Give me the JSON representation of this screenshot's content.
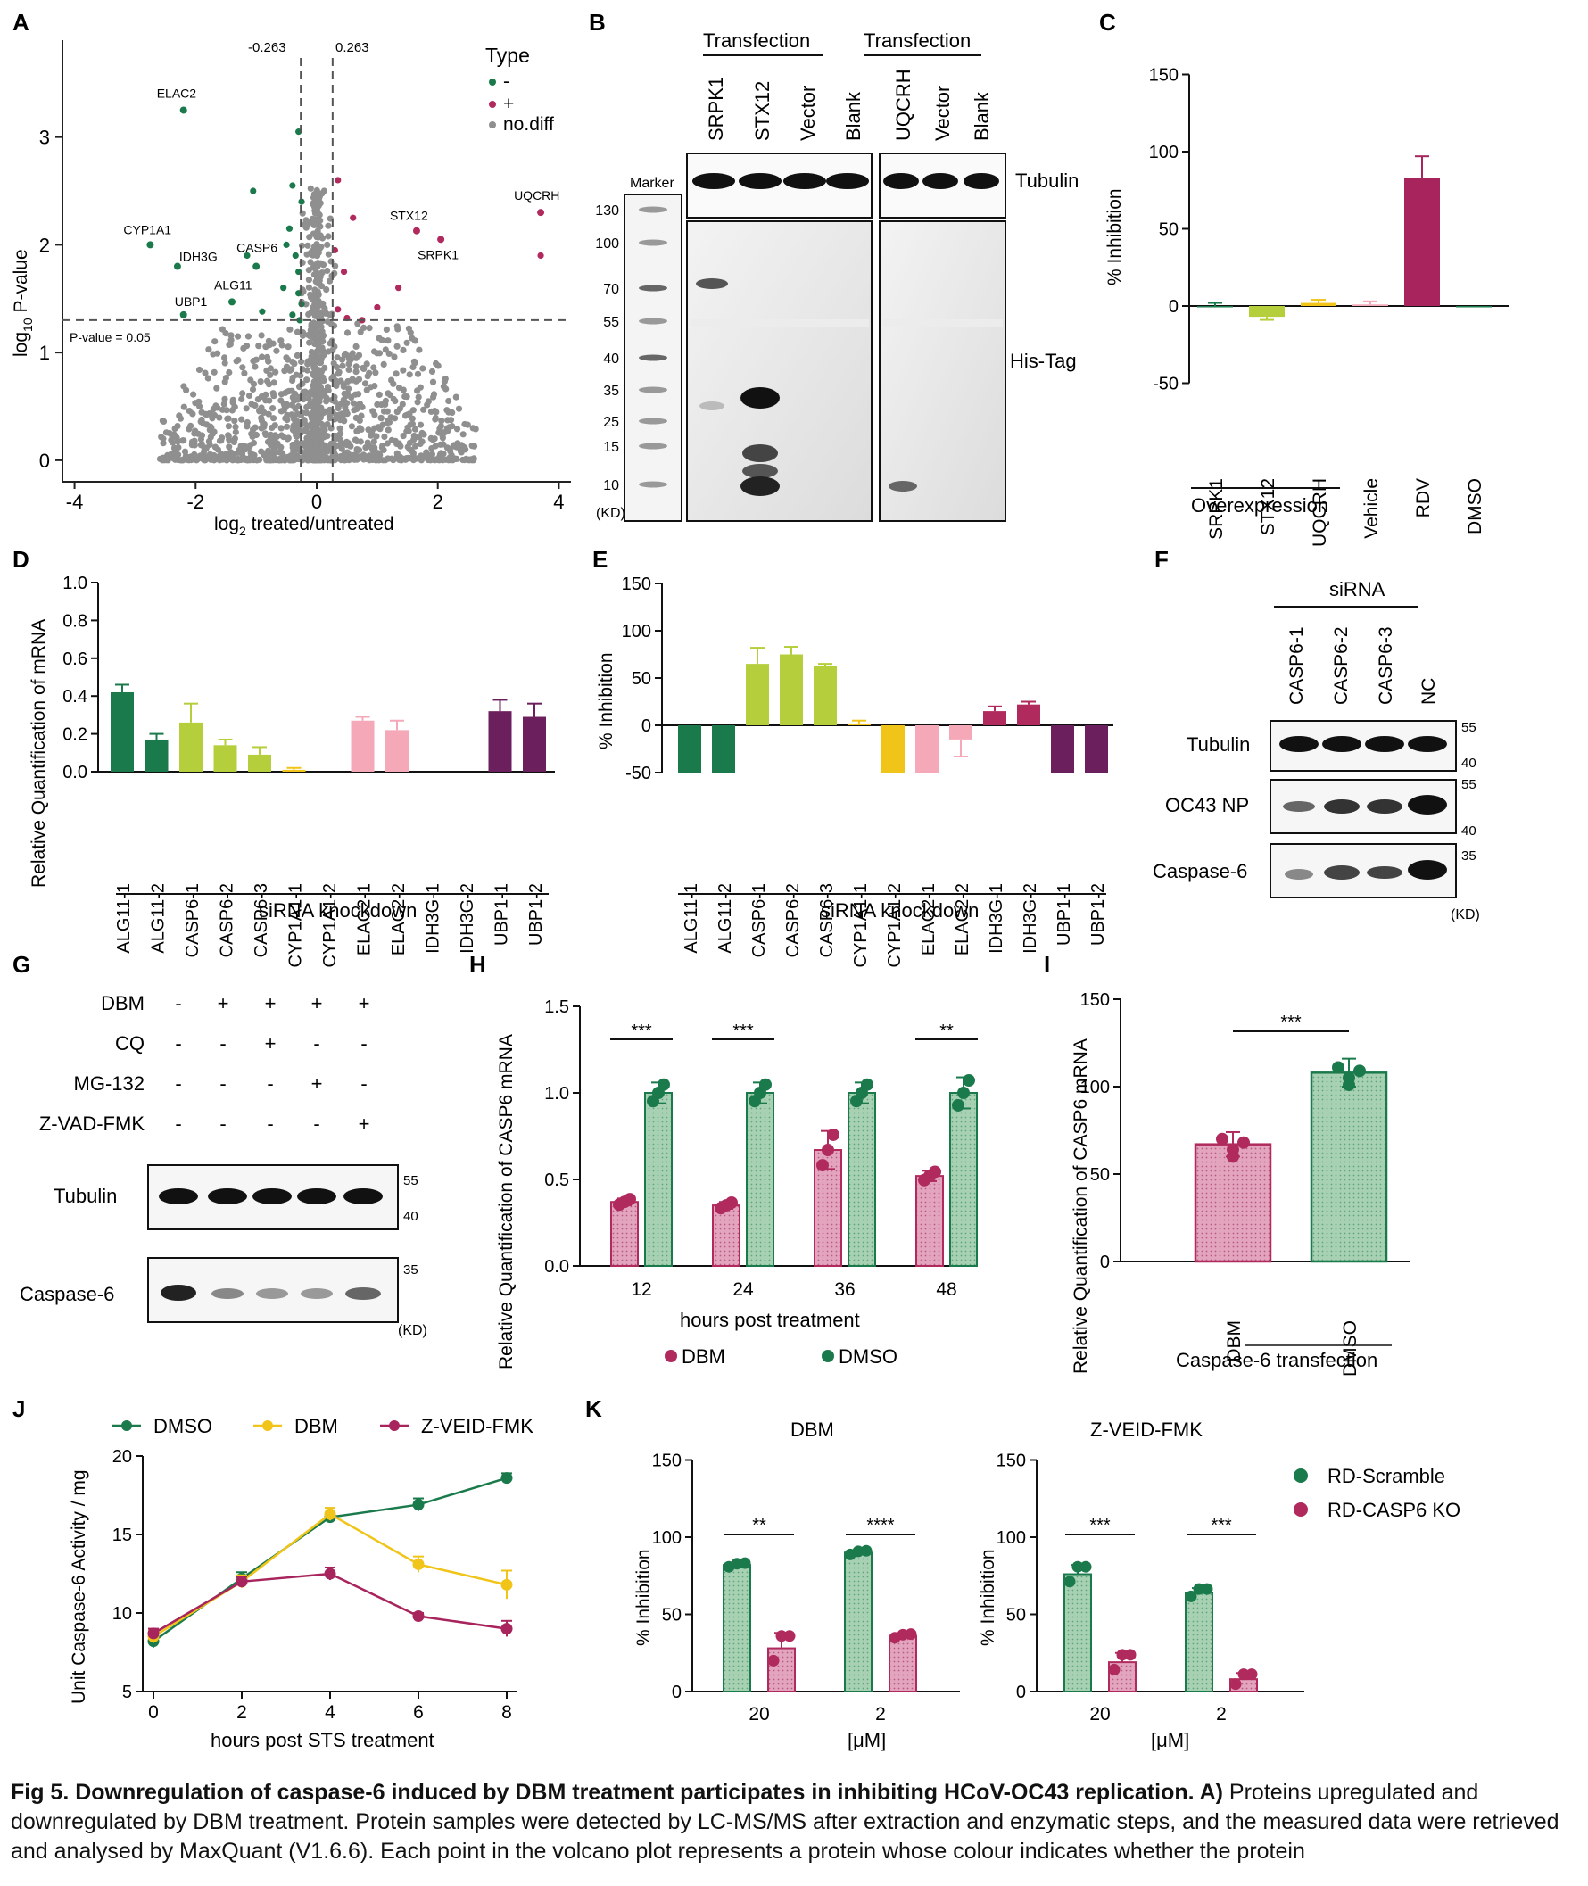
{
  "colors": {
    "green": "#1b7a4c",
    "pink_dark": "#b02a5e",
    "lime": "#b5cf3c",
    "yellow": "#f0c419",
    "pink_light": "#f5a9b8",
    "purple": "#6b1f5c",
    "magenta": "#a8245c",
    "gray": "#8f8f8f",
    "green_fill": "#a8d1b4",
    "pink_fill": "#e3a4bd"
  },
  "panels": {
    "A": {
      "letter": "A",
      "legend_title": "Type",
      "legend": [
        "-",
        "+",
        "no.diff"
      ],
      "xlabel": "log2 treated/untreated",
      "ylabel": "log10 P-value",
      "threshold_left": "-0.263",
      "threshold_right": "0.263",
      "pvalue_label": "P-value = 0.05",
      "x_ticks": [
        "-4",
        "-2",
        "0",
        "2",
        "4"
      ],
      "y_ticks": [
        "0",
        "1",
        "2",
        "3"
      ]
    },
    "B": {
      "letter": "B",
      "header_left": "Transfection",
      "header_right": "Transfection",
      "lanes_left": [
        "SRPK1",
        "STX12",
        "Vector",
        "Blank"
      ],
      "lanes_right": [
        "UQCRH",
        "Vector",
        "Blank"
      ],
      "marker_label": "Marker",
      "band_top": "Tubulin",
      "band_bottom": "His-Tag",
      "mw": [
        "130",
        "100",
        "70",
        "55",
        "40",
        "35",
        "25",
        "15",
        "10"
      ],
      "unit": "(KD)"
    },
    "C": {
      "letter": "C",
      "ylabel": "% Inhibition",
      "y_ticks": [
        "150",
        "100",
        "50",
        "0",
        "-50"
      ],
      "group_label": "Overexpression"
    },
    "D": {
      "letter": "D",
      "ylabel": "Relative Quantification of mRNA",
      "xgroup": "siRNA knockdown",
      "y_ticks": [
        "1.0",
        "0.8",
        "0.6",
        "0.4",
        "0.2",
        "0.0"
      ]
    },
    "E": {
      "letter": "E",
      "ylabel": "% Inhibition",
      "xgroup": "siRNA knockdown",
      "y_ticks": [
        "150",
        "100",
        "50",
        "0",
        "-50"
      ]
    },
    "F": {
      "letter": "F",
      "header": "siRNA",
      "lanes": [
        "CASP6-1",
        "CASP6-2",
        "CASP6-3",
        "NC"
      ],
      "rows": [
        "Tubulin",
        "OC43 NP",
        "Caspase-6"
      ],
      "mw": [
        "55",
        "40",
        "55",
        "40",
        "35"
      ],
      "unit": "(KD)"
    },
    "G": {
      "letter": "G",
      "treatments": [
        {
          "name": "DBM",
          "signs": [
            "-",
            "+",
            "+",
            "+",
            "+"
          ]
        },
        {
          "name": "CQ",
          "signs": [
            "-",
            "-",
            "+",
            "-",
            "-"
          ]
        },
        {
          "name": "MG-132",
          "signs": [
            "-",
            "-",
            "-",
            "+",
            "-"
          ]
        },
        {
          "name": "Z-VAD-FMK",
          "signs": [
            "-",
            "-",
            "-",
            "-",
            "+"
          ]
        }
      ],
      "rows": [
        "Tubulin",
        "Caspase-6"
      ],
      "mw": [
        "55",
        "40",
        "35"
      ],
      "unit": "(KD)"
    },
    "H": {
      "letter": "H",
      "ylabel": "Relative Quantification of CASP6 mRNA",
      "xlabel": "hours post treatment",
      "legend": [
        "DBM",
        "DMSO"
      ],
      "y_ticks": [
        "1.5",
        "1.0",
        "0.5",
        "0.0"
      ],
      "sig": [
        "***",
        "***",
        "**"
      ]
    },
    "I": {
      "letter": "I",
      "ylabel": "Relative Quantification of CASP6 mRNA",
      "xlabel": "Caspase-6 transfection",
      "y_ticks": [
        "150",
        "100",
        "50",
        "0"
      ],
      "sig": "***"
    },
    "J": {
      "letter": "J",
      "ylabel": "Unit Caspase-6 Activity / mg",
      "xlabel": "hours post STS treatment",
      "legend": [
        "DMSO",
        "DBM",
        "Z-VEID-FMK"
      ],
      "y_ticks": [
        "20",
        "15",
        "10",
        "5"
      ]
    },
    "K": {
      "letter": "K",
      "title_left": "DBM",
      "title_right": "Z-VEID-FMK",
      "ylabel": "% Inhibition",
      "xlabel": "[μM]",
      "legend": [
        "RD-Scramble",
        "RD-CASP6 KO"
      ],
      "y_ticks": [
        "150",
        "100",
        "50",
        "0"
      ],
      "sig_left": [
        "**",
        "****"
      ],
      "sig_right": [
        "***",
        "***"
      ]
    }
  },
  "chart_data": [
    {
      "panel": "C",
      "type": "bar",
      "categories": [
        "SRPK1",
        "STX12",
        "UQCRH",
        "Vehicle",
        "RDV",
        "DMSO"
      ],
      "values": [
        0,
        -7,
        2,
        1,
        83,
        0
      ],
      "errors": [
        2,
        2,
        2,
        2,
        14,
        0
      ],
      "ylabel": "% Inhibition",
      "ylim": [
        -50,
        150
      ]
    },
    {
      "panel": "D",
      "type": "bar",
      "categories": [
        "ALG11-1",
        "ALG11-2",
        "CASP6-1",
        "CASP6-2",
        "CASP6-3",
        "CYP1A1-1",
        "CYP1A1-2",
        "ELAC2-1",
        "ELAC2-2",
        "IDH3G-1",
        "IDH3G-2",
        "UBP1-1",
        "UBP1-2"
      ],
      "values": [
        0.42,
        0.17,
        0.26,
        0.14,
        0.09,
        0.01,
        0,
        0.27,
        0.22,
        0,
        0,
        0.32,
        0.29
      ],
      "errors": [
        0.04,
        0.03,
        0.1,
        0.03,
        0.04,
        0.01,
        0,
        0.02,
        0.05,
        0,
        0,
        0.06,
        0.07
      ],
      "ylabel": "Relative Quantification of mRNA",
      "ylim": [
        0,
        1
      ]
    },
    {
      "panel": "E",
      "type": "bar",
      "categories": [
        "ALG11-1",
        "ALG11-2",
        "CASP6-1",
        "CASP6-2",
        "CASP6-3",
        "CYP1A1-1",
        "CYP1A1-2",
        "ELAC2-1",
        "ELAC2-2",
        "IDH3G-1",
        "IDH3G-2",
        "UBP1-1",
        "UBP1-2"
      ],
      "values": [
        -50,
        -50,
        65,
        75,
        63,
        2,
        -50,
        -50,
        -15,
        15,
        22,
        -50,
        -50
      ],
      "errors": [
        0,
        0,
        17,
        8,
        2,
        3,
        0,
        0,
        18,
        5,
        3,
        0,
        0
      ],
      "ylabel": "% Inhibition",
      "ylim": [
        -50,
        150
      ]
    },
    {
      "panel": "H",
      "type": "bar",
      "categories": [
        "12",
        "24",
        "36",
        "48"
      ],
      "series": [
        {
          "name": "DBM",
          "values": [
            0.37,
            0.35,
            0.67,
            0.52
          ],
          "errors": [
            0.02,
            0.02,
            0.11,
            0.03
          ]
        },
        {
          "name": "DMSO",
          "values": [
            1.0,
            1.0,
            1.0,
            1.0
          ],
          "errors": [
            0.06,
            0.06,
            0.06,
            0.09
          ]
        }
      ],
      "ylabel": "Relative Quantification of CASP6 mRNA",
      "xlabel": "hours post treatment",
      "ylim": [
        0,
        1.5
      ]
    },
    {
      "panel": "I",
      "type": "bar",
      "categories": [
        "DBM",
        "DMSO"
      ],
      "values": [
        67,
        108
      ],
      "errors": [
        7,
        8
      ],
      "ylabel": "Relative Quantification of CASP6 mRNA",
      "ylim": [
        0,
        150
      ]
    },
    {
      "panel": "J",
      "type": "line",
      "x": [
        0,
        2,
        4,
        6,
        8
      ],
      "series": [
        {
          "name": "DMSO",
          "values": [
            8.2,
            12.2,
            16.1,
            16.9,
            18.6
          ],
          "errors": [
            0.4,
            0.4,
            0.3,
            0.4,
            0.3
          ]
        },
        {
          "name": "DBM",
          "values": [
            8.5,
            12.0,
            16.3,
            13.1,
            11.8
          ],
          "errors": [
            0.4,
            0.4,
            0.4,
            0.5,
            0.9
          ]
        },
        {
          "name": "Z-VEID-FMK",
          "values": [
            8.7,
            12.0,
            12.5,
            9.8,
            9.0
          ],
          "errors": [
            0.3,
            0.3,
            0.4,
            0.2,
            0.5
          ]
        }
      ],
      "ylabel": "Unit Caspase-6 Activity / mg",
      "xlabel": "hours post STS treatment",
      "ylim": [
        5,
        20
      ],
      "xlim": [
        0,
        8
      ]
    },
    {
      "panel": "K-DBM",
      "type": "bar",
      "title": "DBM",
      "categories": [
        "20",
        "2"
      ],
      "series": [
        {
          "name": "RD-Scramble",
          "values": [
            82,
            90
          ],
          "errors": [
            1,
            1
          ]
        },
        {
          "name": "RD-CASP6 KO",
          "values": [
            28,
            36
          ],
          "errors": [
            10,
            1
          ]
        }
      ],
      "ylabel": "% Inhibition",
      "xlabel": "[μM]",
      "ylim": [
        0,
        150
      ]
    },
    {
      "panel": "K-ZVEID",
      "type": "bar",
      "title": "Z-VEID-FMK",
      "categories": [
        "20",
        "2"
      ],
      "series": [
        {
          "name": "RD-Scramble",
          "values": [
            76,
            64
          ],
          "errors": [
            6,
            3
          ]
        },
        {
          "name": "RD-CASP6 KO",
          "values": [
            19,
            8
          ],
          "errors": [
            6,
            4
          ]
        }
      ],
      "ylabel": "% Inhibition",
      "xlabel": "[μM]",
      "ylim": [
        0,
        150
      ]
    },
    {
      "panel": "A",
      "type": "scatter",
      "labeled_points": [
        {
          "label": "ELAC2",
          "x": -2.2,
          "y": 3.25,
          "type": "-"
        },
        {
          "label": "CYP1A1",
          "x": -2.75,
          "y": 2.0,
          "type": "-"
        },
        {
          "label": "IDH3G",
          "x": -2.3,
          "y": 1.8,
          "type": "-"
        },
        {
          "label": "CASP6",
          "x": -1.0,
          "y": 1.8,
          "type": "-"
        },
        {
          "label": "ALG11",
          "x": -1.4,
          "y": 1.47,
          "type": "-"
        },
        {
          "label": "UBP1",
          "x": -2.2,
          "y": 1.35,
          "type": "-"
        },
        {
          "label": "UQCRH",
          "x": 3.7,
          "y": 2.3,
          "type": "+"
        },
        {
          "label": "STX12",
          "x": 1.65,
          "y": 2.13,
          "type": "+"
        },
        {
          "label": "SRPK1",
          "x": 2.05,
          "y": 2.05,
          "type": "+"
        }
      ],
      "xlabel": "log2 treated/untreated",
      "ylabel": "log10 P-value",
      "xlim": [
        -4.2,
        4.2
      ],
      "ylim": [
        -0.2,
        3.9
      ]
    }
  ],
  "caption": {
    "bold": "Fig 5.  Downregulation of caspase-6 induced by DBM treatment participates in inhibiting HCoV-OC43 replication. A)",
    "text": " Proteins upregulated and downregulated by DBM treatment. Protein samples were detected by LC-MS/MS after extraction and enzymatic steps, and the measured data were retrieved and analysed by MaxQuant (V1.6.6). Each point in the volcano plot represents a protein whose colour indicates whether the protein"
  }
}
